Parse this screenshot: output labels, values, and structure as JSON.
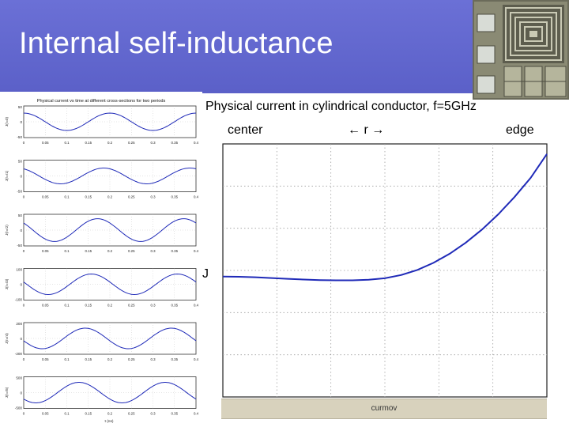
{
  "slide": {
    "title": "Internal self-inductance",
    "caption": "Physical current in cylindrical conductor, f=5GHz",
    "label_center": "center",
    "label_r": "← r →",
    "label_edge": "edge",
    "label_j": "J",
    "bottom_bar_label": "curmov"
  },
  "left_figure": {
    "title": "Physical current vs time at different cross-sections for two periods",
    "xlabel": "t (ns)",
    "x_ticks": [
      "0",
      "0.05",
      "0.1",
      "0.15",
      "0.2",
      "0.25",
      "0.3",
      "0.35",
      "0.4"
    ],
    "panels": [
      {
        "ylabel": "J(r=0)",
        "ticks": [
          "50",
          "0",
          "-50"
        ],
        "amp": 0.55,
        "phase": 0.0
      },
      {
        "ylabel": "J(r=r1)",
        "ticks": [
          "50",
          "0",
          "-50"
        ],
        "amp": 0.5,
        "phase": 0.45
      },
      {
        "ylabel": "J(r=r2)",
        "ticks": [
          "50",
          "0",
          "-50"
        ],
        "amp": 0.72,
        "phase": 0.9
      },
      {
        "ylabel": "J(r=r3)",
        "ticks": [
          "100",
          "0",
          "-100"
        ],
        "amp": 0.65,
        "phase": 1.35
      },
      {
        "ylabel": "J(r=r4)",
        "ticks": [
          "200",
          "0",
          "-200"
        ],
        "amp": 0.65,
        "phase": 1.8
      },
      {
        "ylabel": "J(r=r5)",
        "ticks": [
          "500",
          "0",
          "-500"
        ],
        "amp": 0.65,
        "phase": 2.25
      }
    ],
    "periods": 2,
    "line_color": "#1f2ab8"
  },
  "chart_data": {
    "type": "line",
    "title": "",
    "xlabel": "",
    "ylabel": "",
    "grid": true,
    "xlim": [
      0,
      1
    ],
    "ylim": [
      0,
      1
    ],
    "series": [
      {
        "values_x": [
          0.0,
          0.05,
          0.1,
          0.15,
          0.2,
          0.25,
          0.3,
          0.35,
          0.4,
          0.45,
          0.5,
          0.55,
          0.6,
          0.65,
          0.7,
          0.75,
          0.8,
          0.85,
          0.9,
          0.95,
          1.0
        ],
        "values_y": [
          0.476,
          0.475,
          0.473,
          0.47,
          0.467,
          0.464,
          0.462,
          0.461,
          0.461,
          0.463,
          0.469,
          0.482,
          0.502,
          0.53,
          0.566,
          0.61,
          0.662,
          0.722,
          0.79,
          0.866,
          0.96
        ]
      }
    ],
    "colors": {
      "line": "#1f2ab8",
      "grid": "#9e9e9e"
    }
  }
}
